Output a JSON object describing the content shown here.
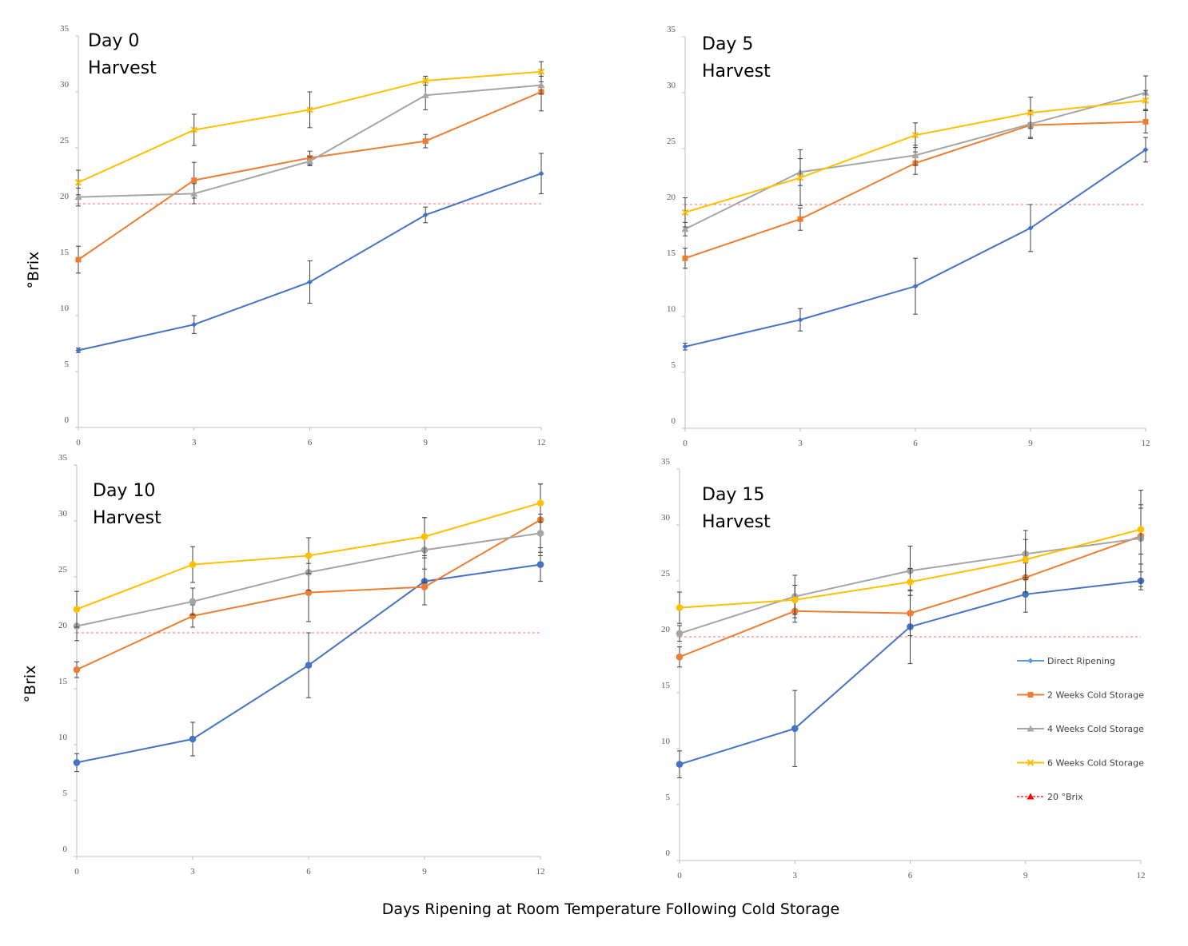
{
  "figure": {
    "xlabel": "Days Ripening at Room Temperature Following Cold Storage"
  },
  "chart_data": [
    {
      "type": "line",
      "title_lines": [
        "Day 0",
        "Harvest"
      ],
      "ylabel": "°Brix",
      "x": [
        0,
        3,
        6,
        9,
        12
      ],
      "xlim": [
        0,
        12
      ],
      "ylim": [
        0,
        35
      ],
      "xticks": [
        "0",
        "3",
        "6",
        "9",
        "12"
      ],
      "yticks": [
        "0",
        "5",
        "10",
        "15",
        "20",
        "25",
        "30",
        "35"
      ],
      "threshold": 20,
      "series": [
        {
          "name": "Direct Ripening",
          "color": "#4472c4",
          "marker": "diamond",
          "values": [
            6.9,
            9.2,
            13.0,
            19.0,
            22.7
          ],
          "errors": [
            0.2,
            0.8,
            1.9,
            0.7,
            1.8
          ]
        },
        {
          "name": "2 Weeks Cold Storage",
          "color": "#ed7d31",
          "marker": "square",
          "values": [
            15.0,
            22.1,
            24.1,
            25.6,
            30.0
          ],
          "errors": [
            1.2,
            1.6,
            0.6,
            0.6,
            1.7
          ]
        },
        {
          "name": "4 Weeks Cold Storage",
          "color": "#a5a5a5",
          "marker": "triangle",
          "values": [
            20.6,
            20.9,
            23.8,
            29.7,
            30.6
          ],
          "errors": [
            0.8,
            0.9,
            0.4,
            1.3,
            0.8
          ]
        },
        {
          "name": "6 Weeks Cold Storage",
          "color": "#ffc000",
          "marker": "x",
          "values": [
            21.9,
            26.6,
            28.4,
            31.0,
            31.8
          ],
          "errors": [
            1.1,
            1.4,
            1.6,
            0.4,
            0.9
          ]
        }
      ]
    },
    {
      "type": "line",
      "title_lines": [
        "Day 5",
        "Harvest"
      ],
      "x": [
        0,
        3,
        6,
        9,
        12
      ],
      "xlim": [
        0,
        12
      ],
      "ylim": [
        0,
        35
      ],
      "xticks": [
        "0",
        "3",
        "6",
        "9",
        "12"
      ],
      "yticks": [
        "0",
        "5",
        "10",
        "15",
        "20",
        "25",
        "30",
        "35"
      ],
      "threshold": 20,
      "series": [
        {
          "name": "Direct Ripening",
          "color": "#4472c4",
          "marker": "diamond",
          "values": [
            7.3,
            9.7,
            12.7,
            17.9,
            24.9
          ],
          "errors": [
            0.3,
            1.0,
            2.5,
            2.1,
            1.1
          ]
        },
        {
          "name": "2 Weeks Cold Storage",
          "color": "#ed7d31",
          "marker": "square",
          "values": [
            15.2,
            18.7,
            23.7,
            27.1,
            27.4
          ],
          "errors": [
            0.9,
            1.0,
            1.0,
            1.2,
            1.0
          ]
        },
        {
          "name": "4 Weeks Cold Storage",
          "color": "#a5a5a5",
          "marker": "triangle",
          "values": [
            17.8,
            22.9,
            24.4,
            27.2,
            30.0
          ],
          "errors": [
            0.6,
            1.2,
            0.9,
            1.2,
            1.5
          ]
        },
        {
          "name": "6 Weeks Cold Storage",
          "color": "#ffc000",
          "marker": "x",
          "values": [
            19.3,
            22.4,
            26.2,
            28.2,
            29.3
          ],
          "errors": [
            1.3,
            2.5,
            1.1,
            1.4,
            0.9
          ]
        }
      ]
    },
    {
      "type": "line",
      "title_lines": [
        "Day 10",
        "Harvest"
      ],
      "ylabel": "°Brix",
      "x": [
        0,
        3,
        6,
        9,
        12
      ],
      "xlim": [
        0,
        12
      ],
      "ylim": [
        0,
        35
      ],
      "xticks": [
        "0",
        "3",
        "6",
        "9",
        "12"
      ],
      "yticks": [
        "0",
        "5",
        "10",
        "15",
        "20",
        "25",
        "30",
        "35"
      ],
      "threshold": 20,
      "series": [
        {
          "name": "Direct Ripening",
          "color": "#4472c4",
          "marker": "circle",
          "values": [
            8.4,
            10.5,
            17.1,
            24.6,
            26.1
          ],
          "errors": [
            0.8,
            1.5,
            2.9,
            2.1,
            1.5
          ]
        },
        {
          "name": "2 Weeks Cold Storage",
          "color": "#ed7d31",
          "marker": "circle",
          "values": [
            16.7,
            21.5,
            23.6,
            24.1,
            30.1
          ],
          "errors": [
            0.7,
            1.0,
            2.6,
            1.6,
            3.2
          ]
        },
        {
          "name": "4 Weeks Cold Storage",
          "color": "#a5a5a5",
          "marker": "circle",
          "values": [
            20.6,
            22.8,
            25.4,
            27.4,
            28.9
          ],
          "errors": [
            1.3,
            1.2,
            1.6,
            2.9,
            1.7
          ]
        },
        {
          "name": "6 Weeks Cold Storage",
          "color": "#ffc000",
          "marker": "circle",
          "values": [
            22.1,
            26.1,
            26.9,
            28.6,
            31.6
          ],
          "errors": [
            1.6,
            1.6,
            1.6,
            1.7,
            1.7
          ]
        }
      ]
    },
    {
      "type": "line",
      "title_lines": [
        "Day 15",
        "Harvest"
      ],
      "x": [
        0,
        3,
        6,
        9,
        12
      ],
      "xlim": [
        0,
        12
      ],
      "ylim": [
        0,
        35
      ],
      "xticks": [
        "0",
        "3",
        "6",
        "9",
        "12"
      ],
      "yticks": [
        "0",
        "5",
        "10",
        "15",
        "20",
        "25",
        "30",
        "35"
      ],
      "threshold": 20,
      "series": [
        {
          "name": "Direct Ripening",
          "color": "#4472c4",
          "marker": "circle",
          "values": [
            8.6,
            11.8,
            20.9,
            23.8,
            25.0
          ],
          "errors": [
            1.2,
            3.4,
            3.3,
            1.6,
            0.8
          ]
        },
        {
          "name": "2 Weeks Cold Storage",
          "color": "#ed7d31",
          "marker": "circle",
          "values": [
            18.2,
            22.3,
            22.1,
            25.3,
            29.0
          ],
          "errors": [
            0.9,
            1.0,
            2.0,
            1.3,
            2.5
          ]
        },
        {
          "name": "4 Weeks Cold Storage",
          "color": "#a5a5a5",
          "marker": "circle",
          "values": [
            20.3,
            23.6,
            25.9,
            27.4,
            28.8
          ],
          "errors": [
            0.7,
            1.9,
            2.2,
            2.1,
            4.3
          ]
        },
        {
          "name": "6 Weeks Cold Storage",
          "color": "#ffc000",
          "marker": "circle",
          "values": [
            22.6,
            23.3,
            24.9,
            26.9,
            29.6
          ],
          "errors": [
            1.4,
            1.3,
            1.2,
            1.8,
            2.2
          ]
        }
      ]
    }
  ],
  "legend": {
    "placement": "right of Day 15 panel",
    "items": [
      {
        "label": "Direct Ripening",
        "color": "#5b9bd5",
        "marker": "diamond",
        "dashed": false
      },
      {
        "label": "2 Weeks Cold Storage",
        "color": "#ed7d31",
        "marker": "square",
        "dashed": false
      },
      {
        "label": "4 Weeks Cold Storage",
        "color": "#a5a5a5",
        "marker": "triangle",
        "dashed": false
      },
      {
        "label": "6 Weeks Cold Storage",
        "color": "#ffc000",
        "marker": "x",
        "dashed": false
      },
      {
        "label": "20 °Brix",
        "color": "#ff0000",
        "marker": "triangle",
        "dashed": true
      }
    ]
  }
}
